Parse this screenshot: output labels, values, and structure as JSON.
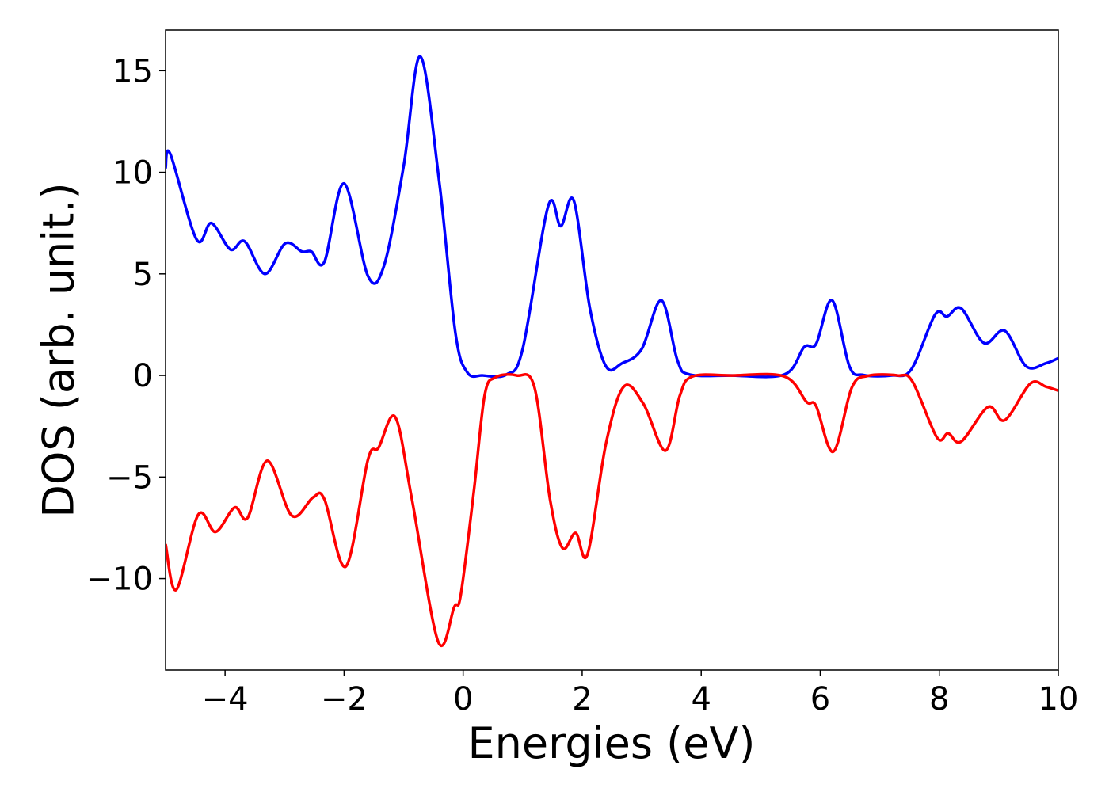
{
  "chart_data": {
    "type": "line",
    "xlabel": "Energies (eV)",
    "ylabel": "DOS (arb. unit.)",
    "xlim": [
      -5,
      10
    ],
    "ylim": [
      -14.5,
      17
    ],
    "xticks": [
      {
        "value": -4,
        "label": "−4"
      },
      {
        "value": -2,
        "label": "−2"
      },
      0,
      2,
      4,
      6,
      8,
      10
    ],
    "yticks": [
      {
        "value": -10,
        "label": "−10"
      },
      {
        "value": -5,
        "label": "−5"
      },
      0,
      5,
      10,
      15
    ],
    "grid": false,
    "series": [
      {
        "color": "#0000ff",
        "x": [
          -5,
          -4.92,
          -4.48,
          -4.23,
          -3.91,
          -3.67,
          -3.33,
          -2.99,
          -2.71,
          -2.55,
          -2.33,
          -2.0,
          -1.6,
          -1.33,
          -1.0,
          -0.72,
          -0.4,
          -0.13,
          0.07,
          0.33,
          0.73,
          1.0,
          1.43,
          1.64,
          1.86,
          2.13,
          2.4,
          2.67,
          3.0,
          3.33,
          3.6,
          3.8,
          4.5,
          5.4,
          5.73,
          5.93,
          6.2,
          6.49,
          6.73,
          7.2,
          7.53,
          7.93,
          8.13,
          8.37,
          8.75,
          9.1,
          9.46,
          9.79,
          10
        ],
        "values": [
          10.2,
          10.9,
          6.7,
          7.5,
          6.2,
          6.6,
          5.0,
          6.5,
          6.1,
          6.1,
          5.6,
          9.45,
          4.9,
          5.4,
          10.3,
          15.7,
          9.5,
          2.1,
          0.15,
          0.0,
          0.05,
          1.3,
          8.35,
          7.35,
          8.6,
          3.3,
          0.45,
          0.6,
          1.3,
          3.7,
          0.75,
          0.05,
          0,
          0.05,
          1.4,
          1.55,
          3.7,
          0.45,
          0.02,
          0,
          0.3,
          3.0,
          2.9,
          3.3,
          1.6,
          2.2,
          0.45,
          0.6,
          0.85
        ]
      },
      {
        "color": "#ff0000",
        "x": [
          -5,
          -4.82,
          -4.45,
          -4.16,
          -3.84,
          -3.62,
          -3.29,
          -2.88,
          -2.52,
          -2.33,
          -1.97,
          -1.6,
          -1.42,
          -1.14,
          -0.86,
          -0.42,
          -0.15,
          -0.04,
          0.18,
          0.36,
          0.54,
          0.9,
          1.2,
          1.46,
          1.67,
          1.89,
          2.09,
          2.4,
          2.7,
          3.03,
          3.4,
          3.64,
          3.85,
          4.5,
          5.4,
          5.77,
          5.93,
          6.22,
          6.53,
          6.8,
          7.3,
          7.55,
          7.96,
          8.15,
          8.37,
          8.82,
          9.1,
          9.53,
          9.79,
          10
        ],
        "values": [
          -8.3,
          -10.55,
          -6.85,
          -7.7,
          -6.5,
          -7.0,
          -4.2,
          -6.9,
          -6.0,
          -6.1,
          -9.4,
          -4.15,
          -3.55,
          -2.05,
          -6.1,
          -13.1,
          -11.4,
          -10.8,
          -5.7,
          -1.0,
          -0.1,
          0,
          -0.6,
          -6.1,
          -8.5,
          -7.75,
          -8.8,
          -3.35,
          -0.55,
          -1.4,
          -3.7,
          -1.0,
          -0.05,
          0,
          -0.05,
          -1.3,
          -1.5,
          -3.75,
          -0.6,
          -0.02,
          0,
          -0.3,
          -3.05,
          -2.85,
          -3.25,
          -1.55,
          -2.2,
          -0.4,
          -0.55,
          -0.75
        ]
      }
    ]
  }
}
